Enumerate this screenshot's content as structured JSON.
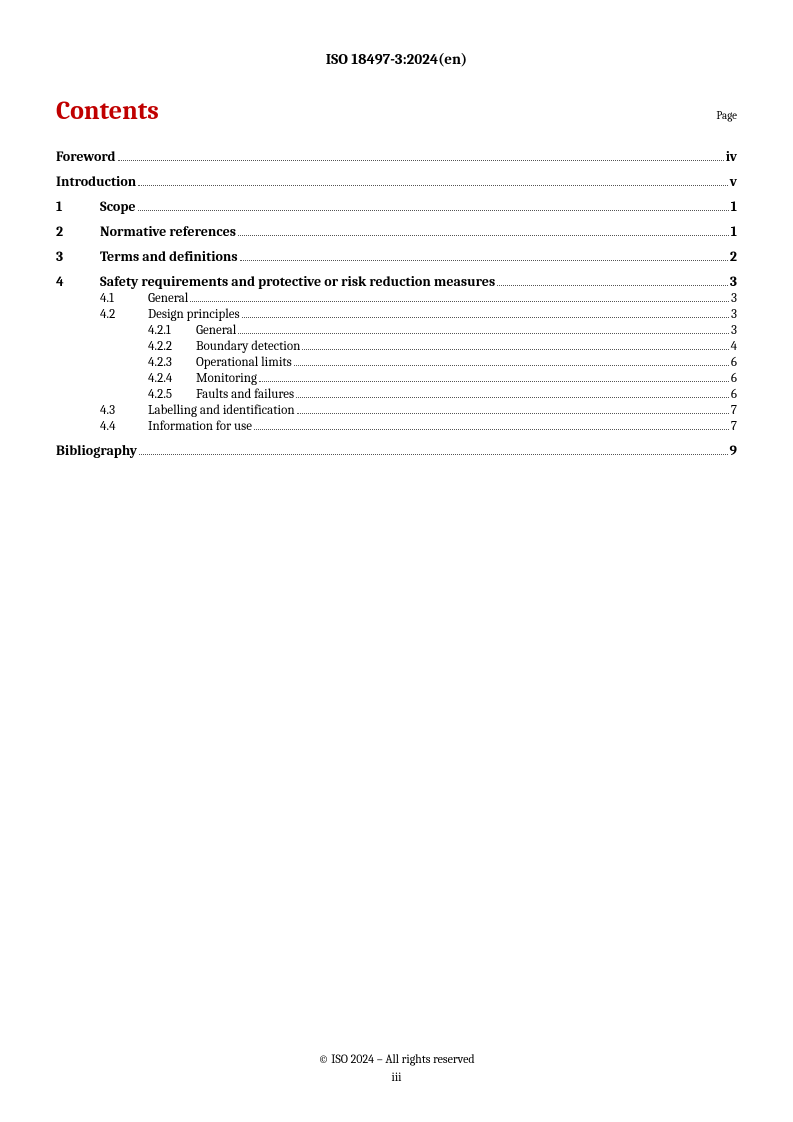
{
  "header": "ISO 18497-3:2024(en)",
  "contents_title": "Contents",
  "page_label": "Page",
  "colors": {
    "title_color": "#c00000",
    "text_color": "#000000",
    "dot_color": "#555555",
    "background": "#ffffff"
  },
  "typography": {
    "header_fontsize": 15,
    "contents_title_fontsize": 26,
    "page_label_fontsize": 11,
    "l0_fontsize": 14,
    "l1_fontsize": 13,
    "l2_fontsize": 13,
    "footer_fontsize": 12,
    "font_family": "Cambria, Georgia, serif"
  },
  "toc": [
    {
      "level": 0,
      "num": "",
      "title": "Foreword",
      "page": "iv"
    },
    {
      "level": 0,
      "num": "",
      "title": "Introduction",
      "page": "v"
    },
    {
      "level": 0,
      "num": "1",
      "title": "Scope",
      "page": "1"
    },
    {
      "level": 0,
      "num": "2",
      "title": "Normative references",
      "page": "1"
    },
    {
      "level": 0,
      "num": "3",
      "title": "Terms and definitions",
      "page": "2"
    },
    {
      "level": 0,
      "num": "4",
      "title": "Safety requirements and protective or risk reduction measures",
      "page": "3"
    },
    {
      "level": 1,
      "num": "4.1",
      "title": "General",
      "page": "3"
    },
    {
      "level": 1,
      "num": "4.2",
      "title": "Design principles",
      "page": "3"
    },
    {
      "level": 2,
      "num": "4.2.1",
      "title": "General",
      "page": "3"
    },
    {
      "level": 2,
      "num": "4.2.2",
      "title": "Boundary detection",
      "page": "4"
    },
    {
      "level": 2,
      "num": "4.2.3",
      "title": "Operational limits",
      "page": "6"
    },
    {
      "level": 2,
      "num": "4.2.4",
      "title": "Monitoring",
      "page": "6"
    },
    {
      "level": 2,
      "num": "4.2.5",
      "title": "Faults and failures",
      "page": "6"
    },
    {
      "level": 1,
      "num": "4.3",
      "title": "Labelling and identification",
      "page": "7"
    },
    {
      "level": 1,
      "num": "4.4",
      "title": "Information for use",
      "page": "7"
    },
    {
      "level": 0,
      "num": "",
      "title": "Bibliography",
      "page": "9"
    }
  ],
  "footer": {
    "copyright": "© ISO 2024 – All rights reserved",
    "page_number": "iii"
  }
}
